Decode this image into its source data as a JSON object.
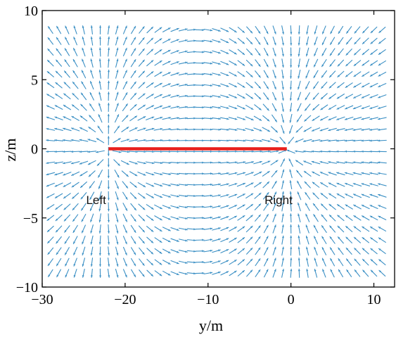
{
  "chart_data": {
    "type": "vector-field",
    "title": "",
    "xlabel": "y/m",
    "ylabel": "z/m",
    "xlim": [
      -30,
      12.5
    ],
    "ylim": [
      -10,
      10
    ],
    "xticks": [
      -30,
      -20,
      -10,
      0,
      10
    ],
    "yticks": [
      -10,
      -5,
      0,
      5,
      10
    ],
    "xtick_labels": [
      "−30",
      "−20",
      "−10",
      "0",
      "10"
    ],
    "ytick_labels": [
      "−10",
      "−5",
      "0",
      "5",
      "10"
    ],
    "grid": false,
    "arrow_color": "#3a8fc4",
    "field": {
      "x_start": -29,
      "x_end": 11,
      "x_step": 1,
      "y_start": -9,
      "y_end": 9,
      "y_step": 0.8
    },
    "source_line": {
      "from": [
        -22,
        0
      ],
      "to": [
        -0.5,
        0
      ],
      "color": "#e8201c"
    },
    "annotations": [
      {
        "text": "Left",
        "x": -23.5,
        "y": -4
      },
      {
        "text": "Right",
        "x": -1.5,
        "y": -4
      }
    ]
  }
}
